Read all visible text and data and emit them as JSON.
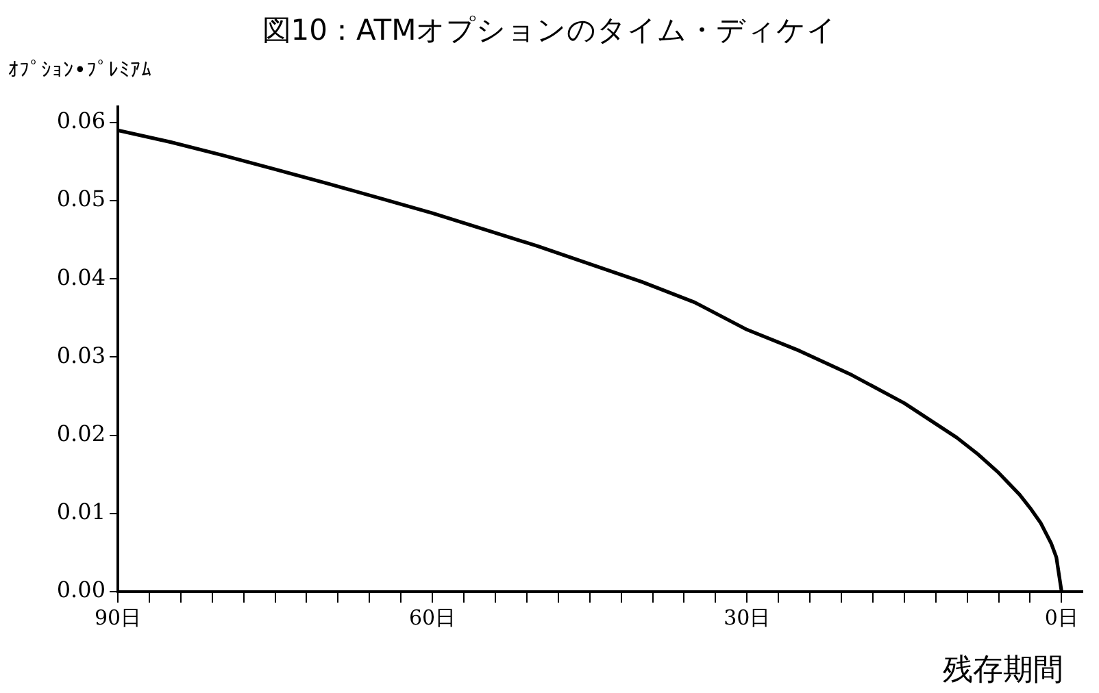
{
  "chart_data": {
    "type": "line",
    "title": "図10：ATMオプションのタイム・ディケイ",
    "ylabel": "ｵﾌﾟｼｮﾝ•ﾌﾟﾚﾐｱﾑ",
    "xlabel": "残存期間",
    "x": [
      90,
      85,
      80,
      75,
      70,
      65,
      60,
      55,
      50,
      45,
      40,
      35,
      30,
      25,
      20,
      15,
      10,
      8,
      6,
      4,
      3,
      2,
      1,
      0.5,
      0
    ],
    "series": [
      {
        "color": "#000000",
        "values": [
          0.059,
          0.0575,
          0.0558,
          0.054,
          0.0522,
          0.0503,
          0.0484,
          0.0463,
          0.0442,
          0.0419,
          0.0396,
          0.037,
          0.0335,
          0.0308,
          0.0277,
          0.0241,
          0.0197,
          0.0176,
          0.0152,
          0.0124,
          0.0107,
          0.0088,
          0.0062,
          0.0044,
          0
        ]
      }
    ],
    "xlim": [
      90,
      -2
    ],
    "ylim": [
      0,
      0.062
    ],
    "xticks": [
      {
        "value": 90,
        "label": "90日"
      },
      {
        "value": 87,
        "label": null
      },
      {
        "value": 84,
        "label": null
      },
      {
        "value": 81,
        "label": null
      },
      {
        "value": 78,
        "label": null
      },
      {
        "value": 75,
        "label": null
      },
      {
        "value": 72,
        "label": null
      },
      {
        "value": 69,
        "label": null
      },
      {
        "value": 66,
        "label": null
      },
      {
        "value": 63,
        "label": null
      },
      {
        "value": 60,
        "label": "60日"
      },
      {
        "value": 57,
        "label": null
      },
      {
        "value": 54,
        "label": null
      },
      {
        "value": 51,
        "label": null
      },
      {
        "value": 48,
        "label": null
      },
      {
        "value": 45,
        "label": null
      },
      {
        "value": 42,
        "label": null
      },
      {
        "value": 39,
        "label": null
      },
      {
        "value": 36,
        "label": null
      },
      {
        "value": 33,
        "label": null
      },
      {
        "value": 30,
        "label": "30日"
      },
      {
        "value": 27,
        "label": null
      },
      {
        "value": 24,
        "label": null
      },
      {
        "value": 21,
        "label": null
      },
      {
        "value": 18,
        "label": null
      },
      {
        "value": 15,
        "label": null
      },
      {
        "value": 12,
        "label": null
      },
      {
        "value": 9,
        "label": null
      },
      {
        "value": 6,
        "label": null
      },
      {
        "value": 3,
        "label": null
      },
      {
        "value": 0,
        "label": "0日"
      }
    ],
    "yticks": [
      {
        "value": 0,
        "label": "0.00"
      },
      {
        "value": 0.01,
        "label": "0.01"
      },
      {
        "value": 0.02,
        "label": "0.02"
      },
      {
        "value": 0.03,
        "label": "0.03"
      },
      {
        "value": 0.04,
        "label": "0.04"
      },
      {
        "value": 0.05,
        "label": "0.05"
      },
      {
        "value": 0.06,
        "label": "0.06"
      }
    ],
    "grid": false,
    "legend": false
  }
}
